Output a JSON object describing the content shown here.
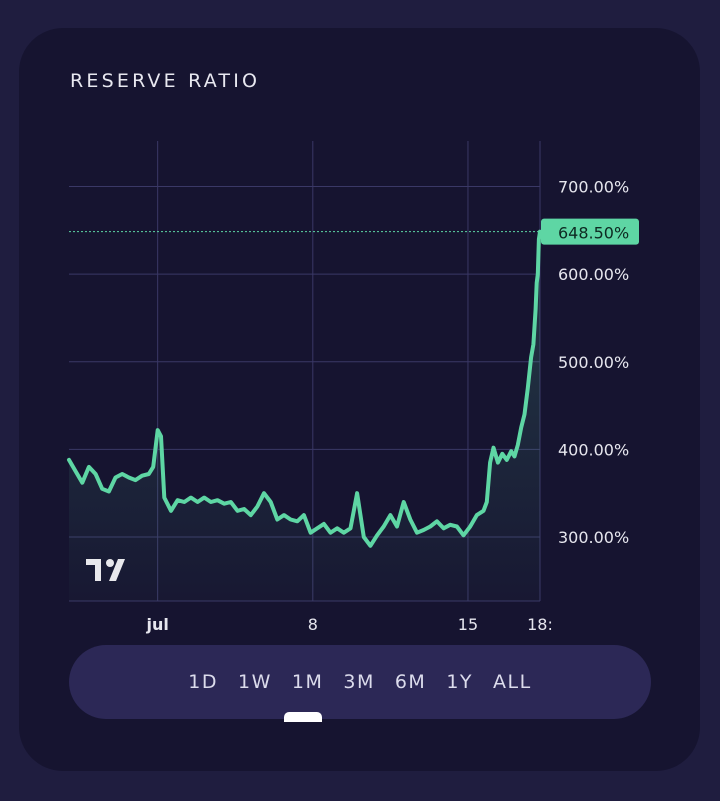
{
  "card": {
    "title": "RESERVE RATIO"
  },
  "chart_data": {
    "type": "area",
    "title": "RESERVE RATIO",
    "y_ticks": [
      "700.00%",
      "600.00%",
      "500.00%",
      "400.00%",
      "300.00%"
    ],
    "y_tick_values": [
      700,
      600,
      500,
      400,
      300
    ],
    "x_ticks": [
      "jul",
      "8",
      "15",
      "18:"
    ],
    "x_tick_positions": [
      0,
      7,
      14,
      17.25
    ],
    "xlim": [
      -4,
      17.25
    ],
    "ylim": [
      227,
      752
    ],
    "last_value": 648.5,
    "last_value_label": "648.50%",
    "grid": true,
    "colors": {
      "line": "#5ed6a4",
      "label_bg": "#5ed6a4",
      "label_text": "#0e2a22"
    },
    "series": [
      {
        "values": [
          [
            -4,
            388
          ],
          [
            -3.7,
            375
          ],
          [
            -3.4,
            362
          ],
          [
            -3.1,
            380
          ],
          [
            -2.8,
            372
          ],
          [
            -2.5,
            355
          ],
          [
            -2.2,
            352
          ],
          [
            -1.9,
            368
          ],
          [
            -1.6,
            372
          ],
          [
            -1.3,
            368
          ],
          [
            -1.0,
            365
          ],
          [
            -0.7,
            370
          ],
          [
            -0.4,
            372
          ],
          [
            -0.2,
            380
          ],
          [
            0.0,
            422
          ],
          [
            0.15,
            415
          ],
          [
            0.3,
            345
          ],
          [
            0.6,
            330
          ],
          [
            0.9,
            342
          ],
          [
            1.2,
            340
          ],
          [
            1.5,
            345
          ],
          [
            1.8,
            340
          ],
          [
            2.1,
            345
          ],
          [
            2.4,
            340
          ],
          [
            2.7,
            342
          ],
          [
            3.0,
            338
          ],
          [
            3.3,
            340
          ],
          [
            3.6,
            330
          ],
          [
            3.9,
            332
          ],
          [
            4.2,
            325
          ],
          [
            4.5,
            335
          ],
          [
            4.8,
            350
          ],
          [
            5.1,
            340
          ],
          [
            5.4,
            320
          ],
          [
            5.7,
            325
          ],
          [
            6.0,
            320
          ],
          [
            6.3,
            318
          ],
          [
            6.6,
            325
          ],
          [
            6.9,
            305
          ],
          [
            7.2,
            310
          ],
          [
            7.5,
            315
          ],
          [
            7.8,
            305
          ],
          [
            8.1,
            310
          ],
          [
            8.4,
            305
          ],
          [
            8.7,
            310
          ],
          [
            9.0,
            350
          ],
          [
            9.3,
            300
          ],
          [
            9.6,
            290
          ],
          [
            9.9,
            302
          ],
          [
            10.2,
            312
          ],
          [
            10.5,
            325
          ],
          [
            10.8,
            312
          ],
          [
            11.1,
            340
          ],
          [
            11.4,
            320
          ],
          [
            11.7,
            305
          ],
          [
            12.0,
            308
          ],
          [
            12.3,
            312
          ],
          [
            12.6,
            318
          ],
          [
            12.9,
            310
          ],
          [
            13.2,
            314
          ],
          [
            13.5,
            312
          ],
          [
            13.8,
            302
          ],
          [
            14.1,
            312
          ],
          [
            14.4,
            325
          ],
          [
            14.7,
            330
          ],
          [
            14.85,
            340
          ],
          [
            15.0,
            385
          ],
          [
            15.15,
            402
          ],
          [
            15.35,
            385
          ],
          [
            15.55,
            395
          ],
          [
            15.75,
            388
          ],
          [
            15.95,
            398
          ],
          [
            16.1,
            392
          ],
          [
            16.25,
            405
          ],
          [
            16.4,
            425
          ],
          [
            16.55,
            440
          ],
          [
            16.7,
            470
          ],
          [
            16.85,
            505
          ],
          [
            16.95,
            520
          ],
          [
            17.05,
            560
          ],
          [
            17.1,
            590
          ],
          [
            17.15,
            600
          ],
          [
            17.2,
            640
          ],
          [
            17.25,
            648.5
          ]
        ]
      }
    ]
  }
}
